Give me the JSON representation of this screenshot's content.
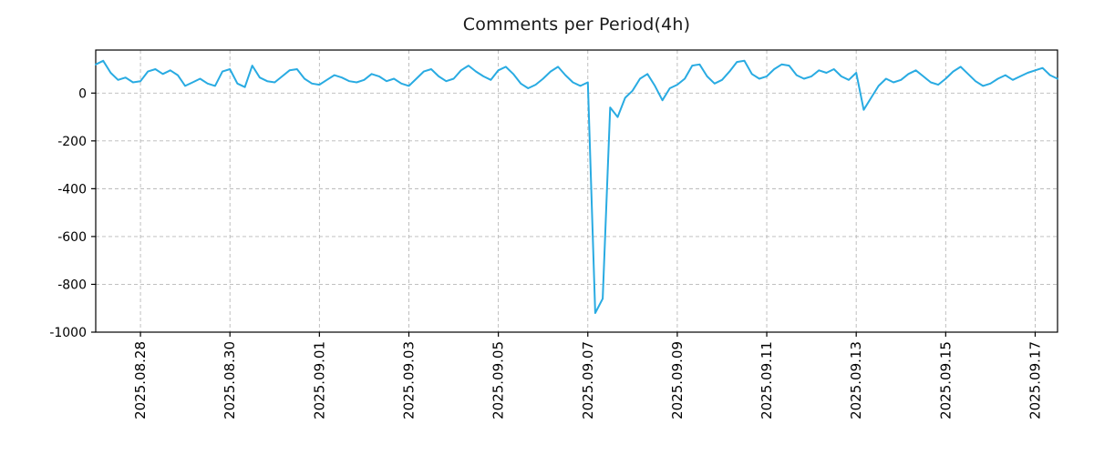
{
  "chart": {
    "title": "Comments per Period(4h)",
    "line_color": "#29abe2",
    "grid_color": "#b8b8b8",
    "axis_color": "#000000",
    "background": "#ffffff"
  },
  "chart_data": {
    "type": "line",
    "title": "Comments per Period(4h)",
    "xlabel": "",
    "ylabel": "",
    "x_start": "2025.08.27 00:00",
    "x_step_hours": 4,
    "x_total_hours": 516,
    "ylim": [
      -1000,
      180
    ],
    "grid": true,
    "legend_position": "none",
    "y_ticks": [
      {
        "label": "0",
        "value": 0
      },
      {
        "label": "-200",
        "value": -200
      },
      {
        "label": "-400",
        "value": -400
      },
      {
        "label": "-600",
        "value": -600
      },
      {
        "label": "-800",
        "value": -800
      },
      {
        "label": "-1000",
        "value": -1000
      }
    ],
    "x_ticks": [
      {
        "label": "2025.08.28",
        "hour": 24
      },
      {
        "label": "2025.08.30",
        "hour": 72
      },
      {
        "label": "2025.09.01",
        "hour": 120
      },
      {
        "label": "2025.09.03",
        "hour": 168
      },
      {
        "label": "2025.09.05",
        "hour": 216
      },
      {
        "label": "2025.09.07",
        "hour": 264
      },
      {
        "label": "2025.09.09",
        "hour": 312
      },
      {
        "label": "2025.09.11",
        "hour": 360
      },
      {
        "label": "2025.09.13",
        "hour": 408
      },
      {
        "label": "2025.09.15",
        "hour": 456
      },
      {
        "label": "2025.09.17",
        "hour": 504
      }
    ],
    "y": [
      120,
      135,
      85,
      55,
      65,
      45,
      50,
      90,
      100,
      80,
      95,
      75,
      30,
      45,
      60,
      40,
      30,
      90,
      100,
      40,
      25,
      115,
      65,
      50,
      45,
      70,
      95,
      100,
      60,
      40,
      35,
      55,
      75,
      65,
      50,
      45,
      55,
      80,
      70,
      50,
      60,
      40,
      30,
      60,
      90,
      100,
      70,
      50,
      60,
      95,
      115,
      90,
      70,
      55,
      95,
      110,
      80,
      40,
      20,
      35,
      60,
      90,
      110,
      75,
      45,
      30,
      45,
      -920,
      -860,
      -60,
      -100,
      -20,
      10,
      60,
      80,
      30,
      -30,
      20,
      35,
      60,
      115,
      120,
      70,
      40,
      55,
      90,
      130,
      135,
      80,
      60,
      70,
      100,
      120,
      115,
      75,
      60,
      70,
      95,
      85,
      100,
      70,
      55,
      85,
      -70,
      -20,
      30,
      60,
      45,
      55,
      80,
      95,
      70,
      45,
      35,
      60,
      90,
      110,
      80,
      50,
      30,
      40,
      60,
      75,
      55,
      70,
      85,
      95,
      105,
      75,
      60
    ]
  }
}
